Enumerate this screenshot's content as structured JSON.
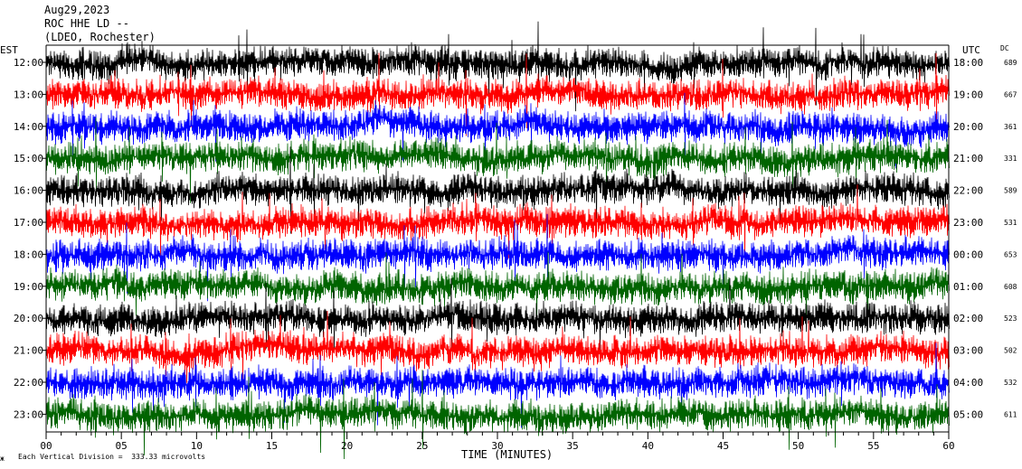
{
  "header": {
    "date": "Aug29,2023",
    "station": "ROC HHE LD --",
    "network": "(LDEO, Rochester)"
  },
  "left_timezone": "EST",
  "right_timezone": "UTC",
  "dc_header": "DC",
  "footer": {
    "scale_note": "Each Vertical Division =  333.33 microvolts",
    "corner_mark": "ж"
  },
  "chart_data": {
    "type": "line",
    "title": "",
    "xlabel": "TIME (MINUTES)",
    "ylabel": "",
    "xlim": [
      0,
      60
    ],
    "x_ticks": [
      "00",
      "05",
      "10",
      "15",
      "20",
      "25",
      "30",
      "35",
      "40",
      "45",
      "50",
      "55",
      "60"
    ],
    "colors": {
      "black": "#000000",
      "red": "#ff0000",
      "blue": "#0000ff",
      "green": "#006400"
    },
    "series": [
      {
        "est": "12:00",
        "utc": "18:00",
        "dc": "689",
        "color": "black"
      },
      {
        "est": "13:00",
        "utc": "19:00",
        "dc": "667",
        "color": "red"
      },
      {
        "est": "14:00",
        "utc": "20:00",
        "dc": "361",
        "color": "blue"
      },
      {
        "est": "15:00",
        "utc": "21:00",
        "dc": "331",
        "color": "green"
      },
      {
        "est": "16:00",
        "utc": "22:00",
        "dc": "589",
        "color": "black"
      },
      {
        "est": "17:00",
        "utc": "23:00",
        "dc": "531",
        "color": "red"
      },
      {
        "est": "18:00",
        "utc": "00:00",
        "dc": "653",
        "color": "blue"
      },
      {
        "est": "19:00",
        "utc": "01:00",
        "dc": "608",
        "color": "green"
      },
      {
        "est": "20:00",
        "utc": "02:00",
        "dc": "523",
        "color": "black"
      },
      {
        "est": "21:00",
        "utc": "03:00",
        "dc": "502",
        "color": "red"
      },
      {
        "est": "22:00",
        "utc": "04:00",
        "dc": "532",
        "color": "blue"
      },
      {
        "est": "23:00",
        "utc": "05:00",
        "dc": "611",
        "color": "green"
      }
    ]
  }
}
